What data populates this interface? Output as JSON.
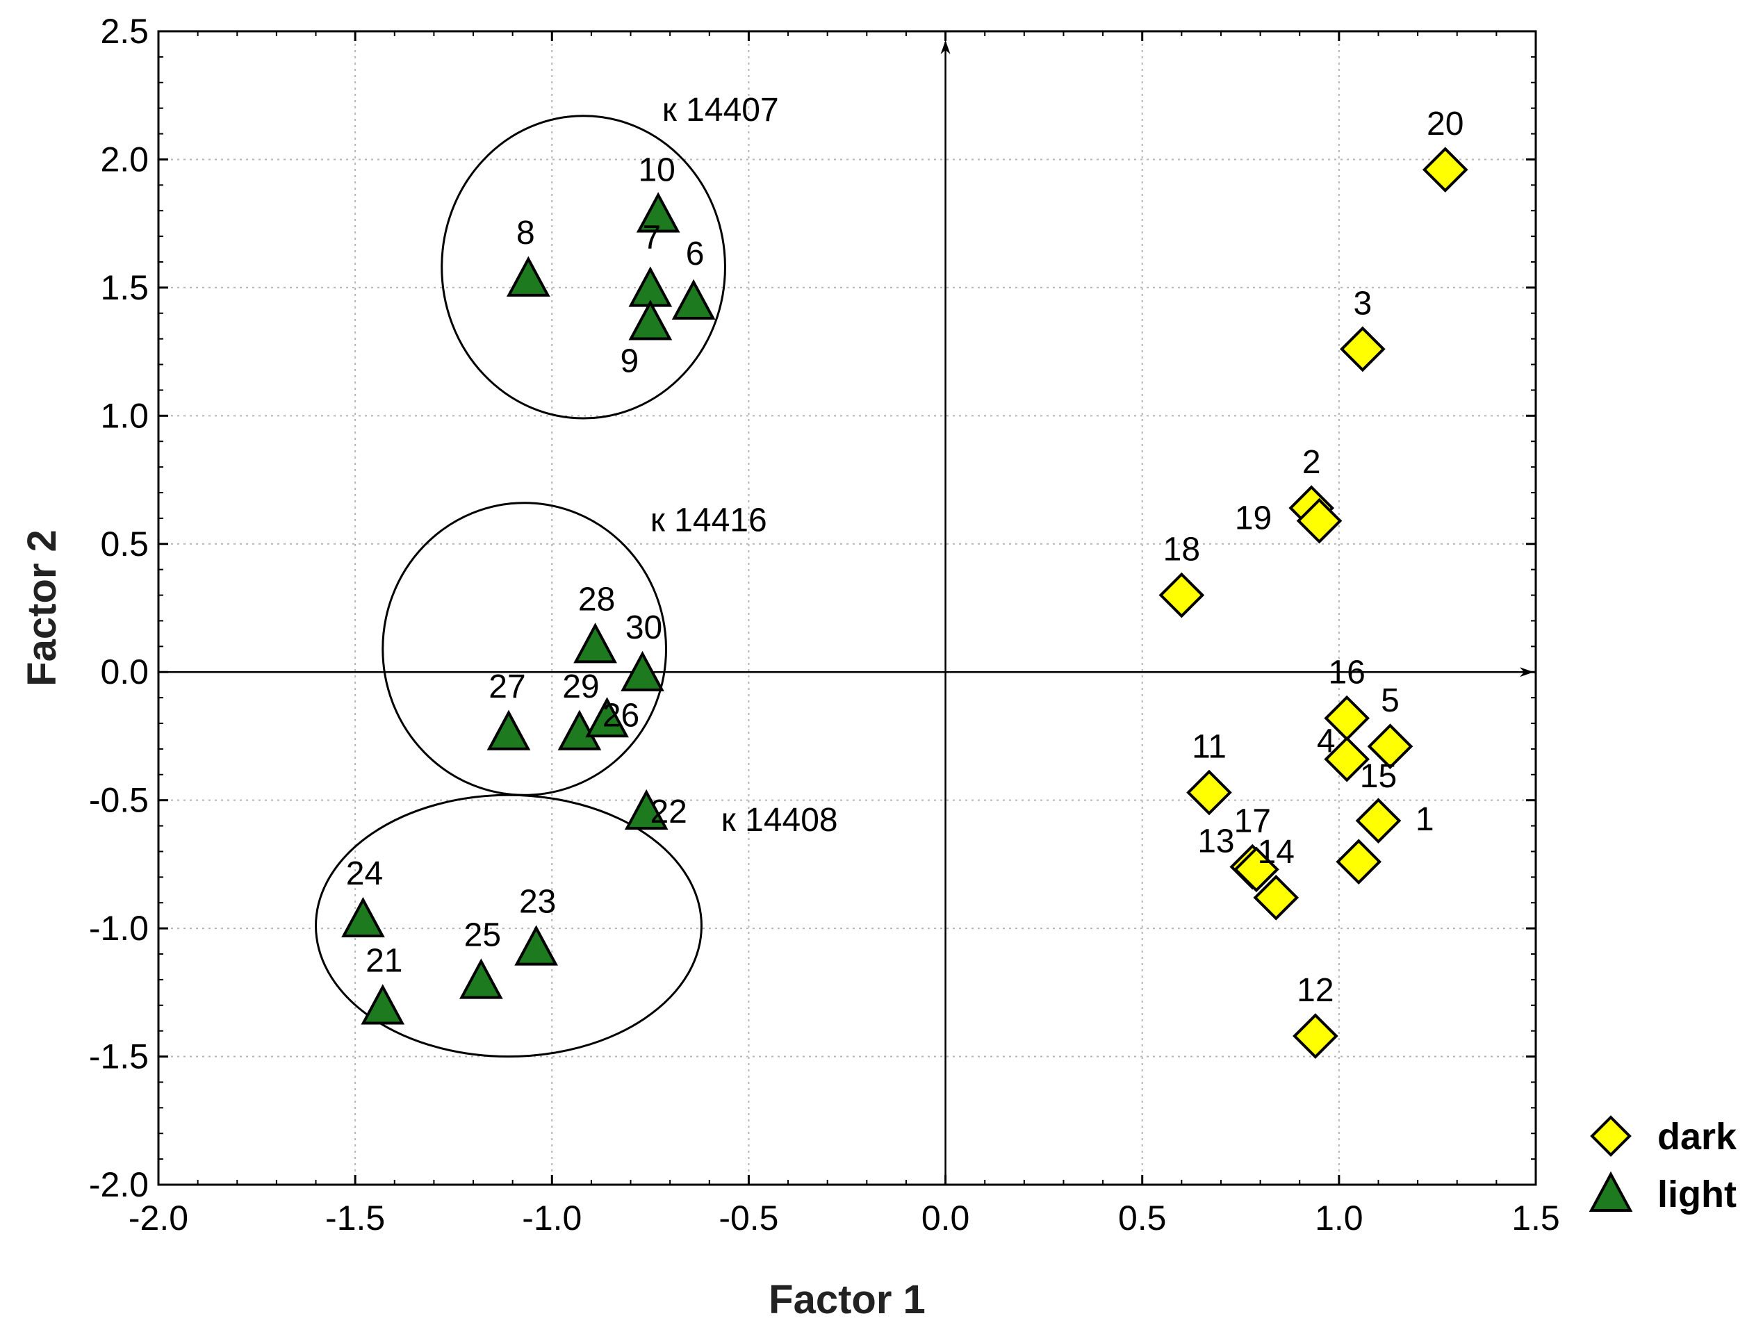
{
  "chart_data": {
    "type": "scatter",
    "title": "",
    "xlabel": "Factor 1",
    "ylabel": "Factor  2",
    "xlim": [
      -2.0,
      1.5
    ],
    "ylim": [
      -2.0,
      2.5
    ],
    "xticks": [
      "-2.0",
      "-1.5",
      "-1.0",
      "-0.5",
      "0.0",
      "0.5",
      "1.0",
      "1.5"
    ],
    "yticks": [
      "2.5",
      "2.0",
      "1.5",
      "1.0",
      "0.5",
      "0.0",
      "-0.5",
      "-1.0",
      "-1.5",
      "-2.0"
    ],
    "grid": true,
    "legend_position": "bottom-right outside",
    "series": [
      {
        "name": "dark",
        "marker": "diamond",
        "color": "#ffff00",
        "points": [
          {
            "label": "20",
            "x": 1.27,
            "y": 1.96
          },
          {
            "label": "3",
            "x": 1.06,
            "y": 1.26
          },
          {
            "label": "2",
            "x": 0.93,
            "y": 0.64
          },
          {
            "label": "19",
            "x": 0.95,
            "y": 0.59
          },
          {
            "label": "18",
            "x": 0.6,
            "y": 0.3
          },
          {
            "label": "16",
            "x": 1.02,
            "y": -0.18
          },
          {
            "label": "5",
            "x": 1.13,
            "y": -0.29
          },
          {
            "label": "15",
            "x": 1.1,
            "y": -0.58
          },
          {
            "label": "4",
            "x": 1.02,
            "y": -0.34
          },
          {
            "label": "11",
            "x": 0.67,
            "y": -0.47
          },
          {
            "label": "17",
            "x": 0.78,
            "y": -0.76
          },
          {
            "label": "13",
            "x": 0.79,
            "y": -0.77
          },
          {
            "label": "14",
            "x": 0.84,
            "y": -0.88
          },
          {
            "label": "1",
            "x": 1.05,
            "y": -0.74
          },
          {
            "label": "12",
            "x": 0.94,
            "y": -1.42
          }
        ]
      },
      {
        "name": "light",
        "marker": "triangle",
        "color": "#1e7a1e",
        "points": [
          {
            "label": "10",
            "x": -0.73,
            "y": 1.78
          },
          {
            "label": "8",
            "x": -1.06,
            "y": 1.53
          },
          {
            "label": "7",
            "x": -0.75,
            "y": 1.49
          },
          {
            "label": "6",
            "x": -0.64,
            "y": 1.44
          },
          {
            "label": "9",
            "x": -0.75,
            "y": 1.36
          },
          {
            "label": "28",
            "x": -0.89,
            "y": 0.1
          },
          {
            "label": "30",
            "x": -0.77,
            "y": -0.01
          },
          {
            "label": "27",
            "x": -1.11,
            "y": -0.24
          },
          {
            "label": "29",
            "x": -0.93,
            "y": -0.24
          },
          {
            "label": "26",
            "x": -0.86,
            "y": -0.19
          },
          {
            "label": "22",
            "x": -0.76,
            "y": -0.55
          },
          {
            "label": "24",
            "x": -1.48,
            "y": -0.97
          },
          {
            "label": "23",
            "x": -1.04,
            "y": -1.08
          },
          {
            "label": "25",
            "x": -1.18,
            "y": -1.21
          },
          {
            "label": "21",
            "x": -1.43,
            "y": -1.31
          }
        ]
      }
    ],
    "annotations": [
      {
        "text": "к 14407",
        "x": -0.72,
        "y": 2.15
      },
      {
        "text": "к 14416",
        "x": -0.75,
        "y": 0.55
      },
      {
        "text": "к 14408",
        "x": -0.57,
        "y": -0.62
      }
    ],
    "clusters": [
      {
        "name": "к 14407",
        "cx": -0.92,
        "cy": 1.58,
        "rx": 0.36,
        "ry": 0.59
      },
      {
        "name": "к 14416",
        "cx": -1.07,
        "cy": 0.09,
        "rx": 0.36,
        "ry": 0.57
      },
      {
        "name": "к 14408",
        "cx": -1.11,
        "cy": -0.99,
        "rx": 0.49,
        "ry": 0.51
      }
    ],
    "legend": [
      "dark",
      "light"
    ]
  }
}
